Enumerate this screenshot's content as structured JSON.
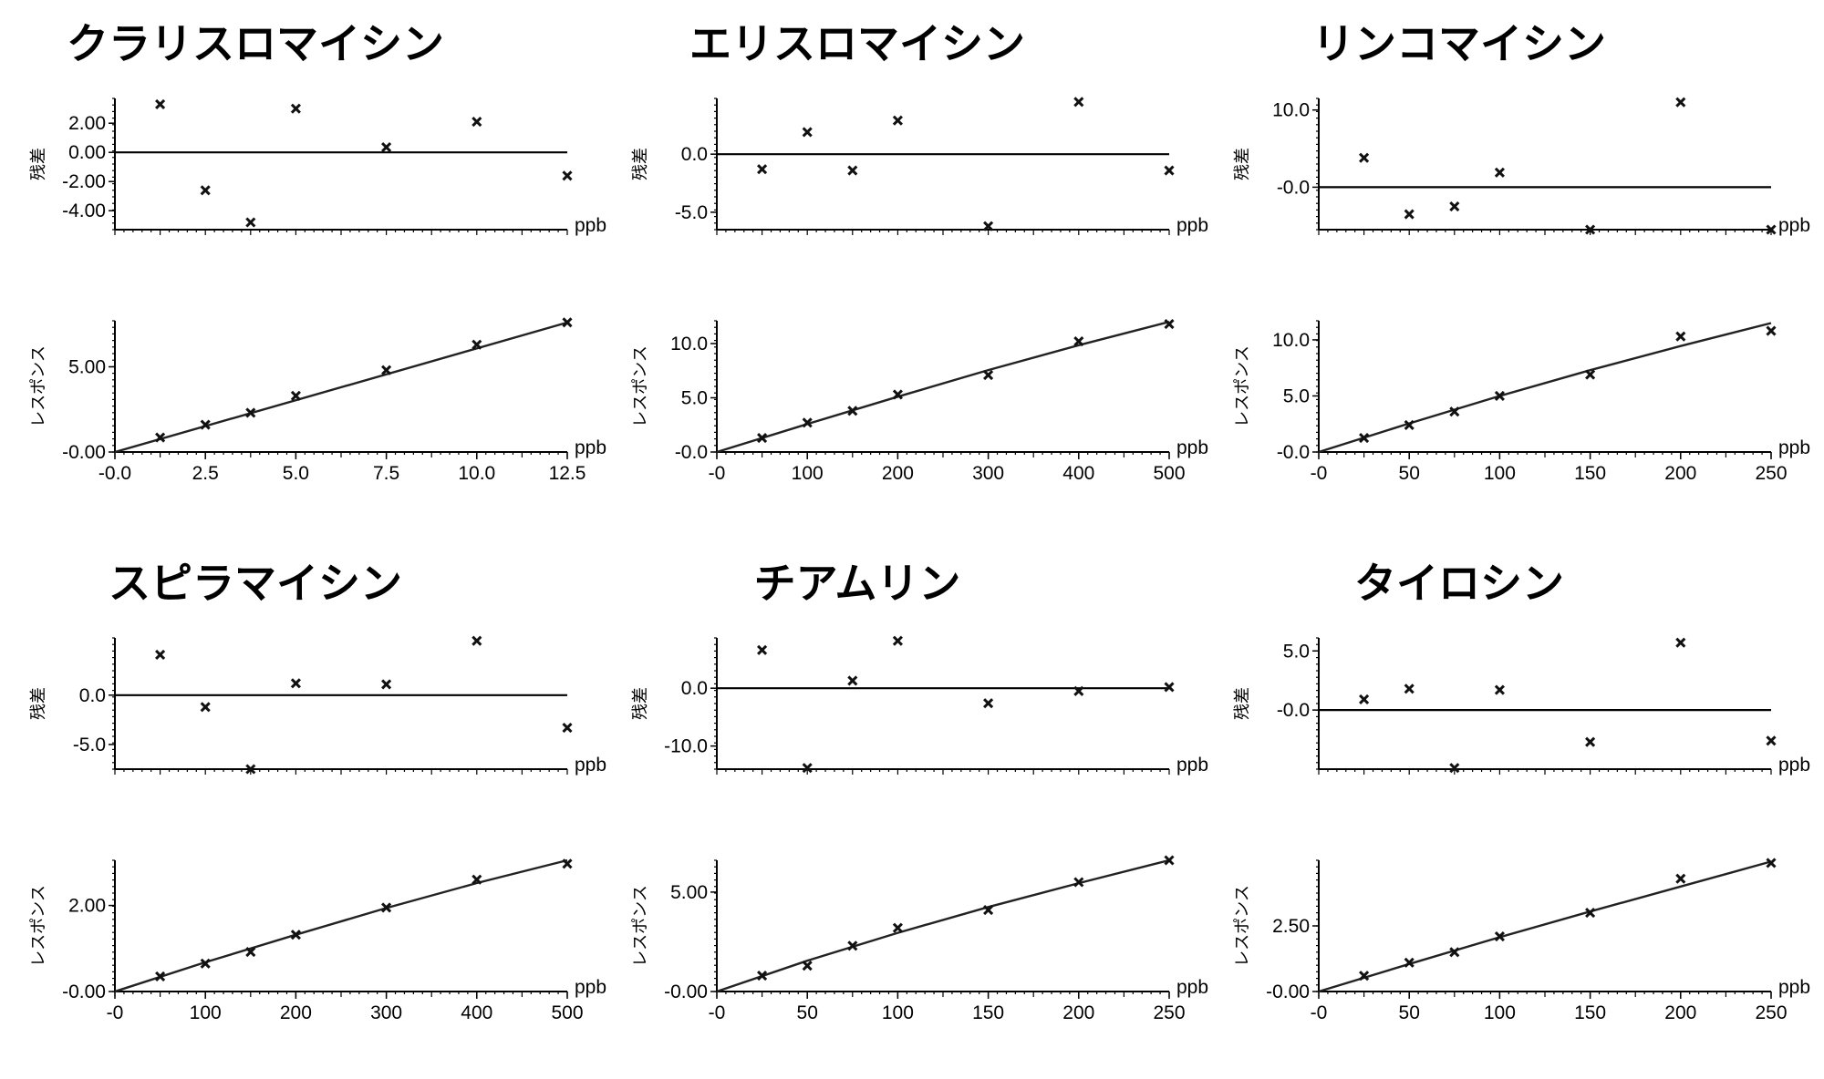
{
  "labels": {
    "residual_axis": "残差",
    "response_axis": "レスポンス",
    "unit": "ppb"
  },
  "chart_data": [
    {
      "type": "scatter",
      "title": "クラリスロマイシン",
      "residual": {
        "ylim": [
          -5.3,
          3.7
        ],
        "yticks": [
          2.0,
          0.0,
          -2.0,
          -4.0
        ],
        "ytick_labels": [
          "2.00",
          "0.00",
          "-2.00",
          "-4.00"
        ],
        "points": [
          [
            1.25,
            3.3
          ],
          [
            2.5,
            -2.6
          ],
          [
            3.75,
            -4.8
          ],
          [
            5.0,
            3.0
          ],
          [
            7.5,
            0.35
          ],
          [
            10.0,
            2.1
          ],
          [
            12.5,
            -1.6
          ]
        ]
      },
      "response": {
        "xlim": [
          0,
          12.5
        ],
        "ylim": [
          0,
          7.7
        ],
        "xticks": [
          0,
          2.5,
          5.0,
          7.5,
          10.0,
          12.5
        ],
        "xtick_labels": [
          "-0.0",
          "2.5",
          "5.0",
          "7.5",
          "10.0",
          "12.5"
        ],
        "yticks": [
          0,
          5.0
        ],
        "ytick_labels": [
          "-0.00",
          "5.00"
        ],
        "points": [
          [
            1.25,
            0.85
          ],
          [
            2.5,
            1.6
          ],
          [
            3.75,
            2.3
          ],
          [
            5.0,
            3.3
          ],
          [
            7.5,
            4.8
          ],
          [
            10.0,
            6.3
          ],
          [
            12.5,
            7.6
          ]
        ],
        "fit": [
          [
            0,
            0
          ],
          [
            12.5,
            7.6
          ]
        ]
      }
    },
    {
      "type": "scatter",
      "title": "エリスロマイシン",
      "residual": {
        "ylim": [
          -6.5,
          4.8
        ],
        "yticks": [
          0.0,
          -5.0
        ],
        "ytick_labels": [
          "0.0",
          "-5.0"
        ],
        "points": [
          [
            50,
            -1.3
          ],
          [
            100,
            1.9
          ],
          [
            150,
            -1.4
          ],
          [
            200,
            2.9
          ],
          [
            300,
            -6.2
          ],
          [
            400,
            4.5
          ],
          [
            500,
            -1.4
          ]
        ]
      },
      "response": {
        "xlim": [
          0,
          500
        ],
        "ylim": [
          0,
          12.1
        ],
        "xticks": [
          0,
          100,
          200,
          300,
          400,
          500
        ],
        "xtick_labels": [
          "-0",
          "100",
          "200",
          "300",
          "400",
          "500"
        ],
        "yticks": [
          0,
          5.0,
          10.0
        ],
        "ytick_labels": [
          "-0.0",
          "5.0",
          "10.0"
        ],
        "points": [
          [
            50,
            1.3
          ],
          [
            100,
            2.7
          ],
          [
            150,
            3.8
          ],
          [
            200,
            5.3
          ],
          [
            300,
            7.1
          ],
          [
            400,
            10.2
          ],
          [
            500,
            11.8
          ]
        ],
        "fit": [
          [
            0,
            0
          ],
          [
            100,
            2.58
          ],
          [
            200,
            5.1
          ],
          [
            300,
            7.55
          ],
          [
            400,
            9.85
          ],
          [
            500,
            12.0
          ]
        ]
      }
    },
    {
      "type": "scatter",
      "title": "リンコマイシン",
      "residual": {
        "ylim": [
          -5.5,
          11.5
        ],
        "yticks": [
          10.0,
          0.0
        ],
        "ytick_labels": [
          "10.0",
          "-0.0"
        ],
        "points": [
          [
            25,
            3.8
          ],
          [
            50,
            -3.5
          ],
          [
            75,
            -2.5
          ],
          [
            100,
            1.9
          ],
          [
            150,
            -5.5
          ],
          [
            200,
            11.0
          ],
          [
            250,
            -5.5
          ]
        ]
      },
      "response": {
        "xlim": [
          0,
          250
        ],
        "ylim": [
          0,
          11.7
        ],
        "xticks": [
          0,
          50,
          100,
          150,
          200,
          250
        ],
        "xtick_labels": [
          "-0",
          "50",
          "100",
          "150",
          "200",
          "250"
        ],
        "yticks": [
          0,
          5.0,
          10.0
        ],
        "ytick_labels": [
          "-0.0",
          "5.0",
          "10.0"
        ],
        "points": [
          [
            25,
            1.25
          ],
          [
            50,
            2.4
          ],
          [
            75,
            3.6
          ],
          [
            100,
            5.0
          ],
          [
            150,
            6.9
          ],
          [
            200,
            10.3
          ],
          [
            250,
            10.8
          ]
        ],
        "fit": [
          [
            0,
            0
          ],
          [
            50,
            2.55
          ],
          [
            100,
            5.0
          ],
          [
            150,
            7.3
          ],
          [
            200,
            9.45
          ],
          [
            250,
            11.5
          ]
        ]
      }
    },
    {
      "type": "scatter",
      "title": "スピラマイシン",
      "residual": {
        "ylim": [
          -7.5,
          5.8
        ],
        "yticks": [
          0.0,
          -5.0
        ],
        "ytick_labels": [
          "0.0",
          "-5.0"
        ],
        "points": [
          [
            50,
            4.1
          ],
          [
            100,
            -1.2
          ],
          [
            150,
            -7.5
          ],
          [
            200,
            1.2
          ],
          [
            300,
            1.1
          ],
          [
            400,
            5.5
          ],
          [
            500,
            -3.3
          ]
        ]
      },
      "response": {
        "xlim": [
          0,
          500
        ],
        "ylim": [
          0,
          3.05
        ],
        "xticks": [
          0,
          100,
          200,
          300,
          400,
          500
        ],
        "xtick_labels": [
          "-0",
          "100",
          "200",
          "300",
          "400",
          "500"
        ],
        "yticks": [
          0,
          2.0
        ],
        "ytick_labels": [
          "-0.00",
          "2.00"
        ],
        "points": [
          [
            50,
            0.35
          ],
          [
            100,
            0.65
          ],
          [
            150,
            0.92
          ],
          [
            200,
            1.32
          ],
          [
            300,
            1.95
          ],
          [
            400,
            2.6
          ],
          [
            500,
            2.97
          ]
        ],
        "fit": [
          [
            0,
            0
          ],
          [
            100,
            0.68
          ],
          [
            200,
            1.32
          ],
          [
            300,
            1.94
          ],
          [
            400,
            2.52
          ],
          [
            500,
            3.05
          ]
        ]
      }
    },
    {
      "type": "scatter",
      "title": "チアムリン",
      "residual": {
        "ylim": [
          -14.0,
          8.7
        ],
        "yticks": [
          0.0,
          -10.0
        ],
        "ytick_labels": [
          "0.0",
          "-10.0"
        ],
        "points": [
          [
            25,
            6.6
          ],
          [
            50,
            -13.8
          ],
          [
            75,
            1.3
          ],
          [
            100,
            8.2
          ],
          [
            150,
            -2.6
          ],
          [
            200,
            -0.5
          ],
          [
            250,
            0.2
          ]
        ]
      },
      "response": {
        "xlim": [
          0,
          250
        ],
        "ylim": [
          0,
          6.6
        ],
        "xticks": [
          0,
          50,
          100,
          150,
          200,
          250
        ],
        "xtick_labels": [
          "-0",
          "50",
          "100",
          "150",
          "200",
          "250"
        ],
        "yticks": [
          0,
          5.0
        ],
        "ytick_labels": [
          "-0.00",
          "5.00"
        ],
        "points": [
          [
            25,
            0.8
          ],
          [
            50,
            1.3
          ],
          [
            75,
            2.3
          ],
          [
            100,
            3.2
          ],
          [
            150,
            4.1
          ],
          [
            200,
            5.5
          ],
          [
            250,
            6.6
          ]
        ],
        "fit": [
          [
            0,
            0
          ],
          [
            50,
            1.55
          ],
          [
            100,
            2.95
          ],
          [
            150,
            4.25
          ],
          [
            200,
            5.45
          ],
          [
            250,
            6.6
          ]
        ]
      }
    },
    {
      "type": "scatter",
      "title": "タイロシン",
      "residual": {
        "ylim": [
          -5.0,
          6.1
        ],
        "yticks": [
          5.0,
          0.0
        ],
        "ytick_labels": [
          "5.0",
          "-0.0"
        ],
        "points": [
          [
            25,
            0.9
          ],
          [
            50,
            1.8
          ],
          [
            75,
            -4.9
          ],
          [
            100,
            1.7
          ],
          [
            150,
            -2.7
          ],
          [
            200,
            5.7
          ],
          [
            250,
            -2.6
          ]
        ]
      },
      "response": {
        "xlim": [
          0,
          250
        ],
        "ylim": [
          0,
          5.0
        ],
        "xticks": [
          0,
          50,
          100,
          150,
          200,
          250
        ],
        "xtick_labels": [
          "-0",
          "50",
          "100",
          "150",
          "200",
          "250"
        ],
        "yticks": [
          0,
          2.5
        ],
        "ytick_labels": [
          "-0.00",
          "2.50"
        ],
        "points": [
          [
            25,
            0.6
          ],
          [
            50,
            1.1
          ],
          [
            75,
            1.5
          ],
          [
            100,
            2.1
          ],
          [
            150,
            3.0
          ],
          [
            200,
            4.3
          ],
          [
            250,
            4.9
          ]
        ],
        "fit": [
          [
            0,
            0
          ],
          [
            50,
            1.05
          ],
          [
            100,
            2.07
          ],
          [
            150,
            3.05
          ],
          [
            200,
            4.0
          ],
          [
            250,
            4.95
          ]
        ]
      }
    }
  ]
}
